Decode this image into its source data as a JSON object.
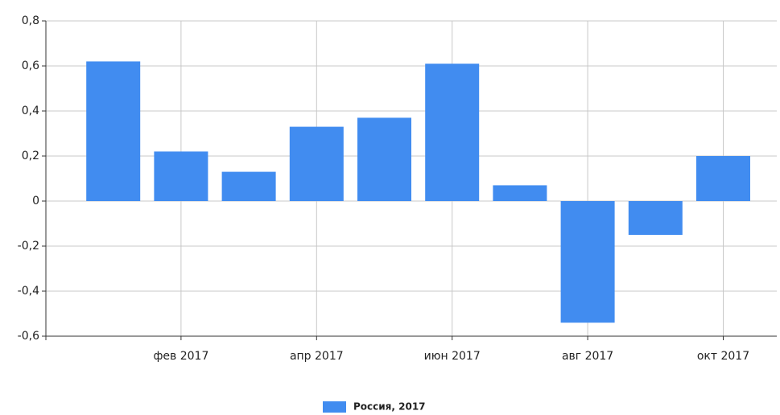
{
  "chart_data": {
    "type": "bar",
    "categories": [
      null,
      "фев 2017",
      null,
      "апр 2017",
      null,
      "июн 2017",
      null,
      "авг 2017",
      null,
      "окт 2017"
    ],
    "series": [
      {
        "name": "Россия, 2017",
        "color": "#418cf0",
        "values": [
          0.62,
          0.22,
          0.13,
          0.33,
          0.37,
          0.61,
          0.07,
          -0.54,
          -0.15,
          0.2
        ]
      }
    ],
    "ylim": [
      -0.6,
      0.8
    ],
    "yticks": [
      {
        "value": -0.6,
        "label": "-0,6"
      },
      {
        "value": -0.4,
        "label": "-0,4"
      },
      {
        "value": -0.2,
        "label": "-0,2"
      },
      0,
      {
        "value": 0.2,
        "label": "0,2"
      },
      {
        "value": 0.4,
        "label": "0,4"
      },
      {
        "value": 0.6,
        "label": "0,6"
      },
      {
        "value": 0.8,
        "label": "0,8"
      }
    ],
    "grid": true,
    "legend": "bottom"
  }
}
